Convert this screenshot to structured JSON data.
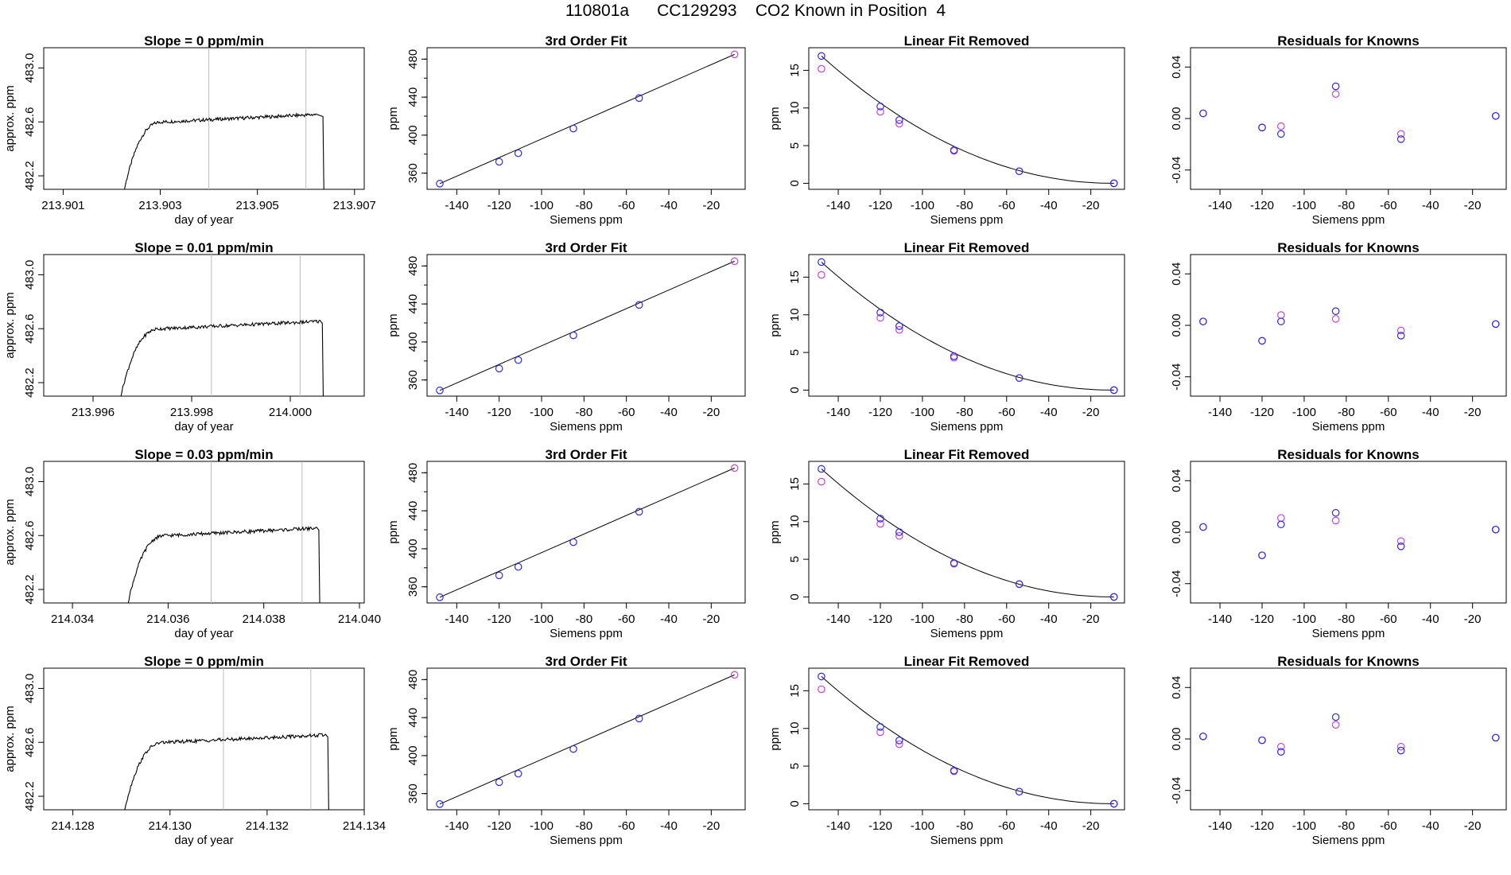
{
  "title": "110801a      CC129293    CO2 Known in Position  4",
  "colors": {
    "line": "#000000",
    "vline": "#bbbbbb",
    "pt_blue": "#2a2ae6",
    "pt_magenta": "#cc44cc",
    "pt_cyan": "#3a8fd6",
    "frame": "#000000"
  },
  "chart_data": [
    {
      "type": "line",
      "title": "Slope =  0  ppm/min",
      "xlabel": "day of year",
      "ylabel": "approx. ppm",
      "xlim": [
        213.9006,
        213.9072
      ],
      "ylim": [
        482.1,
        483.15
      ],
      "xticks": [
        213.901,
        213.903,
        213.905,
        213.907
      ],
      "xticklabels": [
        "213.901",
        "213.903",
        "213.905",
        "213.907"
      ],
      "yticks": [
        482.2,
        482.6,
        483.0
      ],
      "yticklabels": [
        "482.2",
        "482.6",
        "483.0"
      ],
      "vlines": [
        213.904,
        213.906
      ],
      "trace": {
        "x0": 213.9022,
        "x1": 213.9062,
        "drop": 213.90635,
        "plateau": 482.64,
        "rise_y": 482.5
      }
    },
    {
      "type": "scatter",
      "title": "3rd Order Fit",
      "xlabel": "Siemens ppm",
      "ylabel": "ppm",
      "xlim": [
        -154,
        -4
      ],
      "ylim": [
        343,
        492
      ],
      "xticks": [
        -140,
        -120,
        -100,
        -80,
        -60,
        -40,
        -20
      ],
      "xticklabels": [
        "-140",
        "-120",
        "-100",
        "-80",
        "-60",
        "-40",
        "-20"
      ],
      "yticks": [
        360,
        400,
        440,
        480
      ],
      "yticklabels": [
        "360",
        "400",
        "440",
        "480"
      ],
      "points": [
        [
          -148,
          349
        ],
        [
          -120,
          372
        ],
        [
          -111,
          381
        ],
        [
          -85,
          407
        ],
        [
          -54,
          439
        ],
        [
          -9,
          485
        ]
      ],
      "fit": "cubic"
    },
    {
      "type": "scatter",
      "title": "Linear Fit Removed",
      "xlabel": "Siemens ppm",
      "ylabel": "ppm",
      "xlim": [
        -154,
        -4
      ],
      "ylim": [
        -0.8,
        18
      ],
      "xticks": [
        -140,
        -120,
        -100,
        -80,
        -60,
        -40,
        -20
      ],
      "xticklabels": [
        "-140",
        "-120",
        "-100",
        "-80",
        "-60",
        "-40",
        "-20"
      ],
      "yticks": [
        0,
        5,
        10,
        15
      ],
      "yticklabels": [
        "0",
        "5",
        "10",
        "15"
      ],
      "points_blue": [
        [
          -148,
          16.9
        ],
        [
          -120,
          10.2
        ],
        [
          -111,
          8.4
        ],
        [
          -85,
          4.4
        ],
        [
          -54,
          1.6
        ],
        [
          -9,
          0
        ]
      ],
      "points_magenta": [
        [
          -148,
          15.2
        ],
        [
          -120,
          9.5
        ],
        [
          -111,
          7.9
        ],
        [
          -85,
          4.3
        ],
        [
          -54,
          1.6
        ],
        [
          -9,
          0
        ]
      ],
      "fit": "curve"
    },
    {
      "type": "scatter",
      "title": "Residuals for Knowns",
      "xlabel": "Siemens ppm",
      "ylabel": "",
      "xlim": [
        -154,
        -4
      ],
      "ylim": [
        -0.055,
        0.055
      ],
      "xticks": [
        -140,
        -120,
        -100,
        -80,
        -60,
        -40,
        -20
      ],
      "xticklabels": [
        "-140",
        "-120",
        "-100",
        "-80",
        "-60",
        "-40",
        "-20"
      ],
      "yticks": [
        -0.04,
        0.0,
        0.04
      ],
      "yticklabels": [
        "-0.04",
        "0.00",
        "0.04"
      ],
      "points_blue": [
        [
          -148,
          0.004
        ],
        [
          -120,
          -0.007
        ],
        [
          -111,
          -0.012
        ],
        [
          -85,
          0.025
        ],
        [
          -54,
          -0.016
        ],
        [
          -9,
          0.002
        ]
      ],
      "points_magenta": [
        [
          -148,
          0.004
        ],
        [
          -120,
          -0.007
        ],
        [
          -111,
          -0.006
        ],
        [
          -85,
          0.019
        ],
        [
          -54,
          -0.012
        ],
        [
          -9,
          0.002
        ]
      ]
    },
    {
      "type": "line",
      "title": "Slope =  0.01  ppm/min",
      "xlabel": "day of year",
      "ylabel": "approx. ppm",
      "xlim": [
        213.995,
        214.0015
      ],
      "ylim": [
        482.1,
        483.15
      ],
      "xticks": [
        213.996,
        213.998,
        214.0
      ],
      "xticklabels": [
        "213.996",
        "213.998",
        "214.000"
      ],
      "yticks": [
        482.2,
        482.6,
        483.0
      ],
      "yticklabels": [
        "482.2",
        "482.6",
        "483.0"
      ],
      "vlines": [
        213.9984,
        214.0002
      ],
      "trace": {
        "x0": 213.9965,
        "x1": 214.0006,
        "drop": 214.00065,
        "plateau": 482.64,
        "rise_y": 482.5
      }
    },
    {
      "type": "scatter",
      "title": "3rd Order Fit",
      "xlabel": "Siemens ppm",
      "ylabel": "ppm",
      "xlim": [
        -154,
        -4
      ],
      "ylim": [
        343,
        492
      ],
      "xticks": [
        -140,
        -120,
        -100,
        -80,
        -60,
        -40,
        -20
      ],
      "xticklabels": [
        "-140",
        "-120",
        "-100",
        "-80",
        "-60",
        "-40",
        "-20"
      ],
      "yticks": [
        360,
        400,
        440,
        480
      ],
      "yticklabels": [
        "360",
        "400",
        "440",
        "480"
      ],
      "points": [
        [
          -148,
          349
        ],
        [
          -120,
          372
        ],
        [
          -111,
          381
        ],
        [
          -85,
          407
        ],
        [
          -54,
          439
        ],
        [
          -9,
          485
        ]
      ],
      "fit": "cubic"
    },
    {
      "type": "scatter",
      "title": "Linear Fit Removed",
      "xlabel": "Siemens ppm",
      "ylabel": "ppm",
      "xlim": [
        -154,
        -4
      ],
      "ylim": [
        -0.8,
        18
      ],
      "xticks": [
        -140,
        -120,
        -100,
        -80,
        -60,
        -40,
        -20
      ],
      "xticklabels": [
        "-140",
        "-120",
        "-100",
        "-80",
        "-60",
        "-40",
        "-20"
      ],
      "yticks": [
        0,
        5,
        10,
        15
      ],
      "yticklabels": [
        "0",
        "5",
        "10",
        "15"
      ],
      "points_blue": [
        [
          -148,
          17.0
        ],
        [
          -120,
          10.3
        ],
        [
          -111,
          8.5
        ],
        [
          -85,
          4.5
        ],
        [
          -54,
          1.6
        ],
        [
          -9,
          0
        ]
      ],
      "points_magenta": [
        [
          -148,
          15.3
        ],
        [
          -120,
          9.6
        ],
        [
          -111,
          8.0
        ],
        [
          -85,
          4.3
        ],
        [
          -54,
          1.6
        ],
        [
          -9,
          0
        ]
      ],
      "fit": "curve"
    },
    {
      "type": "scatter",
      "title": "Residuals for Knowns",
      "xlabel": "Siemens ppm",
      "ylabel": "",
      "xlim": [
        -154,
        -4
      ],
      "ylim": [
        -0.055,
        0.055
      ],
      "xticks": [
        -140,
        -120,
        -100,
        -80,
        -60,
        -40,
        -20
      ],
      "xticklabels": [
        "-140",
        "-120",
        "-100",
        "-80",
        "-60",
        "-40",
        "-20"
      ],
      "yticks": [
        -0.04,
        0.0,
        0.04
      ],
      "yticklabels": [
        "-0.04",
        "0.00",
        "0.04"
      ],
      "points_blue": [
        [
          -148,
          0.003
        ],
        [
          -120,
          -0.012
        ],
        [
          -111,
          0.003
        ],
        [
          -85,
          0.011
        ],
        [
          -54,
          -0.008
        ],
        [
          -9,
          0.001
        ]
      ],
      "points_magenta": [
        [
          -148,
          0.003
        ],
        [
          -120,
          -0.012
        ],
        [
          -111,
          0.008
        ],
        [
          -85,
          0.005
        ],
        [
          -54,
          -0.004
        ],
        [
          -9,
          0.001
        ]
      ]
    },
    {
      "type": "line",
      "title": "Slope =  0.03  ppm/min",
      "xlabel": "day of year",
      "ylabel": "approx. ppm",
      "xlim": [
        214.0334,
        214.0401
      ],
      "ylim": [
        482.1,
        483.15
      ],
      "xticks": [
        214.034,
        214.036,
        214.038,
        214.04
      ],
      "xticklabels": [
        "214.034",
        "214.036",
        "214.038",
        "214.040"
      ],
      "yticks": [
        482.2,
        482.6,
        483.0
      ],
      "yticklabels": [
        "482.2",
        "482.6",
        "483.0"
      ],
      "vlines": [
        214.0369,
        214.0388
      ],
      "trace": {
        "x0": 214.0351,
        "x1": 214.0391,
        "drop": 214.03915,
        "plateau": 482.64,
        "rise_y": 482.5
      }
    },
    {
      "type": "scatter",
      "title": "3rd Order Fit",
      "xlabel": "Siemens ppm",
      "ylabel": "ppm",
      "xlim": [
        -154,
        -4
      ],
      "ylim": [
        343,
        492
      ],
      "xticks": [
        -140,
        -120,
        -100,
        -80,
        -60,
        -40,
        -20
      ],
      "xticklabels": [
        "-140",
        "-120",
        "-100",
        "-80",
        "-60",
        "-40",
        "-20"
      ],
      "yticks": [
        360,
        400,
        440,
        480
      ],
      "yticklabels": [
        "360",
        "400",
        "440",
        "480"
      ],
      "points": [
        [
          -148,
          349
        ],
        [
          -120,
          372
        ],
        [
          -111,
          381
        ],
        [
          -85,
          407
        ],
        [
          -54,
          439
        ],
        [
          -9,
          485
        ]
      ],
      "fit": "cubic"
    },
    {
      "type": "scatter",
      "title": "Linear Fit Removed",
      "xlabel": "Siemens ppm",
      "ylabel": "ppm",
      "xlim": [
        -154,
        -4
      ],
      "ylim": [
        -0.8,
        18
      ],
      "xticks": [
        -140,
        -120,
        -100,
        -80,
        -60,
        -40,
        -20
      ],
      "xticklabels": [
        "-140",
        "-120",
        "-100",
        "-80",
        "-60",
        "-40",
        "-20"
      ],
      "yticks": [
        0,
        5,
        10,
        15
      ],
      "yticklabels": [
        "0",
        "5",
        "10",
        "15"
      ],
      "points_blue": [
        [
          -148,
          17.0
        ],
        [
          -120,
          10.4
        ],
        [
          -111,
          8.6
        ],
        [
          -85,
          4.5
        ],
        [
          -54,
          1.7
        ],
        [
          -9,
          0
        ]
      ],
      "points_magenta": [
        [
          -148,
          15.3
        ],
        [
          -120,
          9.7
        ],
        [
          -111,
          8.1
        ],
        [
          -85,
          4.4
        ],
        [
          -54,
          1.7
        ],
        [
          -9,
          0
        ]
      ],
      "fit": "curve"
    },
    {
      "type": "scatter",
      "title": "Residuals for Knowns",
      "xlabel": "Siemens ppm",
      "ylabel": "",
      "xlim": [
        -154,
        -4
      ],
      "ylim": [
        -0.055,
        0.055
      ],
      "xticks": [
        -140,
        -120,
        -100,
        -80,
        -60,
        -40,
        -20
      ],
      "xticklabels": [
        "-140",
        "-120",
        "-100",
        "-80",
        "-60",
        "-40",
        "-20"
      ],
      "yticks": [
        -0.04,
        0.0,
        0.04
      ],
      "yticklabels": [
        "-0.04",
        "0.00",
        "0.04"
      ],
      "points_blue": [
        [
          -148,
          0.004
        ],
        [
          -120,
          -0.018
        ],
        [
          -111,
          0.006
        ],
        [
          -85,
          0.015
        ],
        [
          -54,
          -0.011
        ],
        [
          -9,
          0.002
        ]
      ],
      "points_magenta": [
        [
          -148,
          0.004
        ],
        [
          -120,
          -0.018
        ],
        [
          -111,
          0.011
        ],
        [
          -85,
          0.009
        ],
        [
          -54,
          -0.007
        ],
        [
          -9,
          0.002
        ]
      ]
    },
    {
      "type": "line",
      "title": "Slope =  0  ppm/min",
      "xlabel": "day of year",
      "ylabel": "approx. ppm",
      "xlim": [
        214.1274,
        214.134
      ],
      "ylim": [
        482.1,
        483.15
      ],
      "xticks": [
        214.128,
        214.13,
        214.132,
        214.134
      ],
      "xticklabels": [
        "214.128",
        "214.130",
        "214.132",
        "214.134"
      ],
      "yticks": [
        482.2,
        482.6,
        483.0
      ],
      "yticklabels": [
        "482.2",
        "482.6",
        "483.0"
      ],
      "vlines": [
        214.1311,
        214.1329
      ],
      "trace": {
        "x0": 214.129,
        "x1": 214.1332,
        "drop": 214.13325,
        "plateau": 482.64,
        "rise_y": 482.5
      }
    },
    {
      "type": "scatter",
      "title": "3rd Order Fit",
      "xlabel": "Siemens ppm",
      "ylabel": "ppm",
      "xlim": [
        -154,
        -4
      ],
      "ylim": [
        343,
        492
      ],
      "xticks": [
        -140,
        -120,
        -100,
        -80,
        -60,
        -40,
        -20
      ],
      "xticklabels": [
        "-140",
        "-120",
        "-100",
        "-80",
        "-60",
        "-40",
        "-20"
      ],
      "yticks": [
        360,
        400,
        440,
        480
      ],
      "yticklabels": [
        "360",
        "400",
        "440",
        "480"
      ],
      "points": [
        [
          -148,
          349
        ],
        [
          -120,
          372
        ],
        [
          -111,
          381
        ],
        [
          -85,
          407
        ],
        [
          -54,
          439
        ],
        [
          -9,
          485
        ]
      ],
      "fit": "cubic"
    },
    {
      "type": "scatter",
      "title": "Linear Fit Removed",
      "xlabel": "Siemens ppm",
      "ylabel": "ppm",
      "xlim": [
        -154,
        -4
      ],
      "ylim": [
        -0.8,
        18
      ],
      "xticks": [
        -140,
        -120,
        -100,
        -80,
        -60,
        -40,
        -20
      ],
      "xticklabels": [
        "-140",
        "-120",
        "-100",
        "-80",
        "-60",
        "-40",
        "-20"
      ],
      "yticks": [
        0,
        5,
        10,
        15
      ],
      "yticklabels": [
        "0",
        "5",
        "10",
        "15"
      ],
      "points_blue": [
        [
          -148,
          16.9
        ],
        [
          -120,
          10.2
        ],
        [
          -111,
          8.4
        ],
        [
          -85,
          4.4
        ],
        [
          -54,
          1.6
        ],
        [
          -9,
          0
        ]
      ],
      "points_magenta": [
        [
          -148,
          15.2
        ],
        [
          -120,
          9.5
        ],
        [
          -111,
          7.9
        ],
        [
          -85,
          4.3
        ],
        [
          -54,
          1.6
        ],
        [
          -9,
          0
        ]
      ],
      "fit": "curve"
    },
    {
      "type": "scatter",
      "title": "Residuals for Knowns",
      "xlabel": "Siemens ppm",
      "ylabel": "",
      "xlim": [
        -154,
        -4
      ],
      "ylim": [
        -0.055,
        0.055
      ],
      "xticks": [
        -140,
        -120,
        -100,
        -80,
        -60,
        -40,
        -20
      ],
      "xticklabels": [
        "-140",
        "-120",
        "-100",
        "-80",
        "-60",
        "-40",
        "-20"
      ],
      "yticks": [
        -0.04,
        0.0,
        0.04
      ],
      "yticklabels": [
        "-0.04",
        "0.00",
        "0.04"
      ],
      "points_blue": [
        [
          -148,
          0.002
        ],
        [
          -120,
          -0.001
        ],
        [
          -111,
          -0.01
        ],
        [
          -85,
          0.017
        ],
        [
          -54,
          -0.009
        ],
        [
          -9,
          0.001
        ]
      ],
      "points_magenta": [
        [
          -148,
          0.002
        ],
        [
          -120,
          -0.001
        ],
        [
          -111,
          -0.006
        ],
        [
          -85,
          0.011
        ],
        [
          -54,
          -0.006
        ],
        [
          -9,
          0.001
        ]
      ]
    }
  ]
}
